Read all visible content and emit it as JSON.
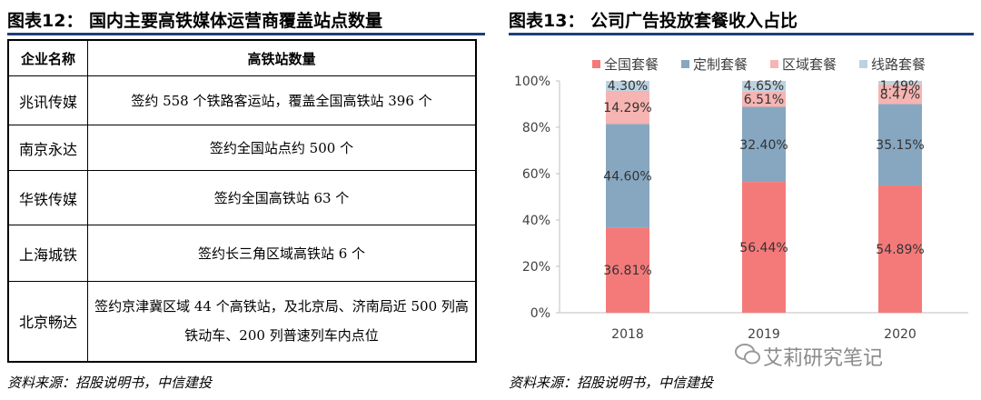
{
  "left_figure": {
    "title": "图表12：  国内主要高铁媒体运营商覆盖站点数量",
    "table": {
      "headers": [
        "企业名称",
        "高铁站数量"
      ],
      "rows": [
        {
          "name": "兆讯传媒",
          "value": "签约 558 个铁路客运站，覆盖全国高铁站 396 个"
        },
        {
          "name": "南京永达",
          "value": "签约全国站点约 500 个"
        },
        {
          "name": "华铁传媒",
          "value": "签约全国高铁站 63 个"
        },
        {
          "name": "上海城铁",
          "value": "签约长三角区域高铁站 6 个"
        },
        {
          "name": "北京畅达",
          "value": "签约京津冀区域 44 个高铁站，及北京局、济南局近 500 列高铁动车、200 列普速列车内点位"
        }
      ]
    },
    "source": "资料来源：招股说明书，中信建投"
  },
  "right_figure": {
    "title": "图表13：  公司广告投放套餐收入占比",
    "source": "资料来源：招股说明书，中信建投"
  },
  "watermark": "艾莉研究笔记",
  "chart_data": {
    "type": "bar",
    "stacked": true,
    "categories": [
      "2018",
      "2019",
      "2020"
    ],
    "series": [
      {
        "name": "全国套餐",
        "color": "#f47a7a",
        "values": [
          36.81,
          56.44,
          54.89
        ],
        "labels": [
          "36.81%",
          "56.44%",
          "54.89%"
        ]
      },
      {
        "name": "定制套餐",
        "color": "#87a7c1",
        "values": [
          44.6,
          32.4,
          35.15
        ],
        "labels": [
          "44.60%",
          "32.40%",
          "35.15%"
        ]
      },
      {
        "name": "区域套餐",
        "color": "#f6b4b2",
        "values": [
          14.29,
          6.51,
          8.47
        ],
        "labels": [
          "14.29%",
          "6.51%",
          "8.47%"
        ]
      },
      {
        "name": "线路套餐",
        "color": "#bdd2e0",
        "values": [
          4.3,
          4.65,
          1.49
        ],
        "labels": [
          "4.30%",
          "4.65%",
          "1.49%"
        ]
      }
    ],
    "yticks": [
      "0%",
      "20%",
      "40%",
      "60%",
      "80%",
      "100%"
    ],
    "ylim": [
      0,
      100
    ],
    "grid": false,
    "legend_position": "top"
  }
}
